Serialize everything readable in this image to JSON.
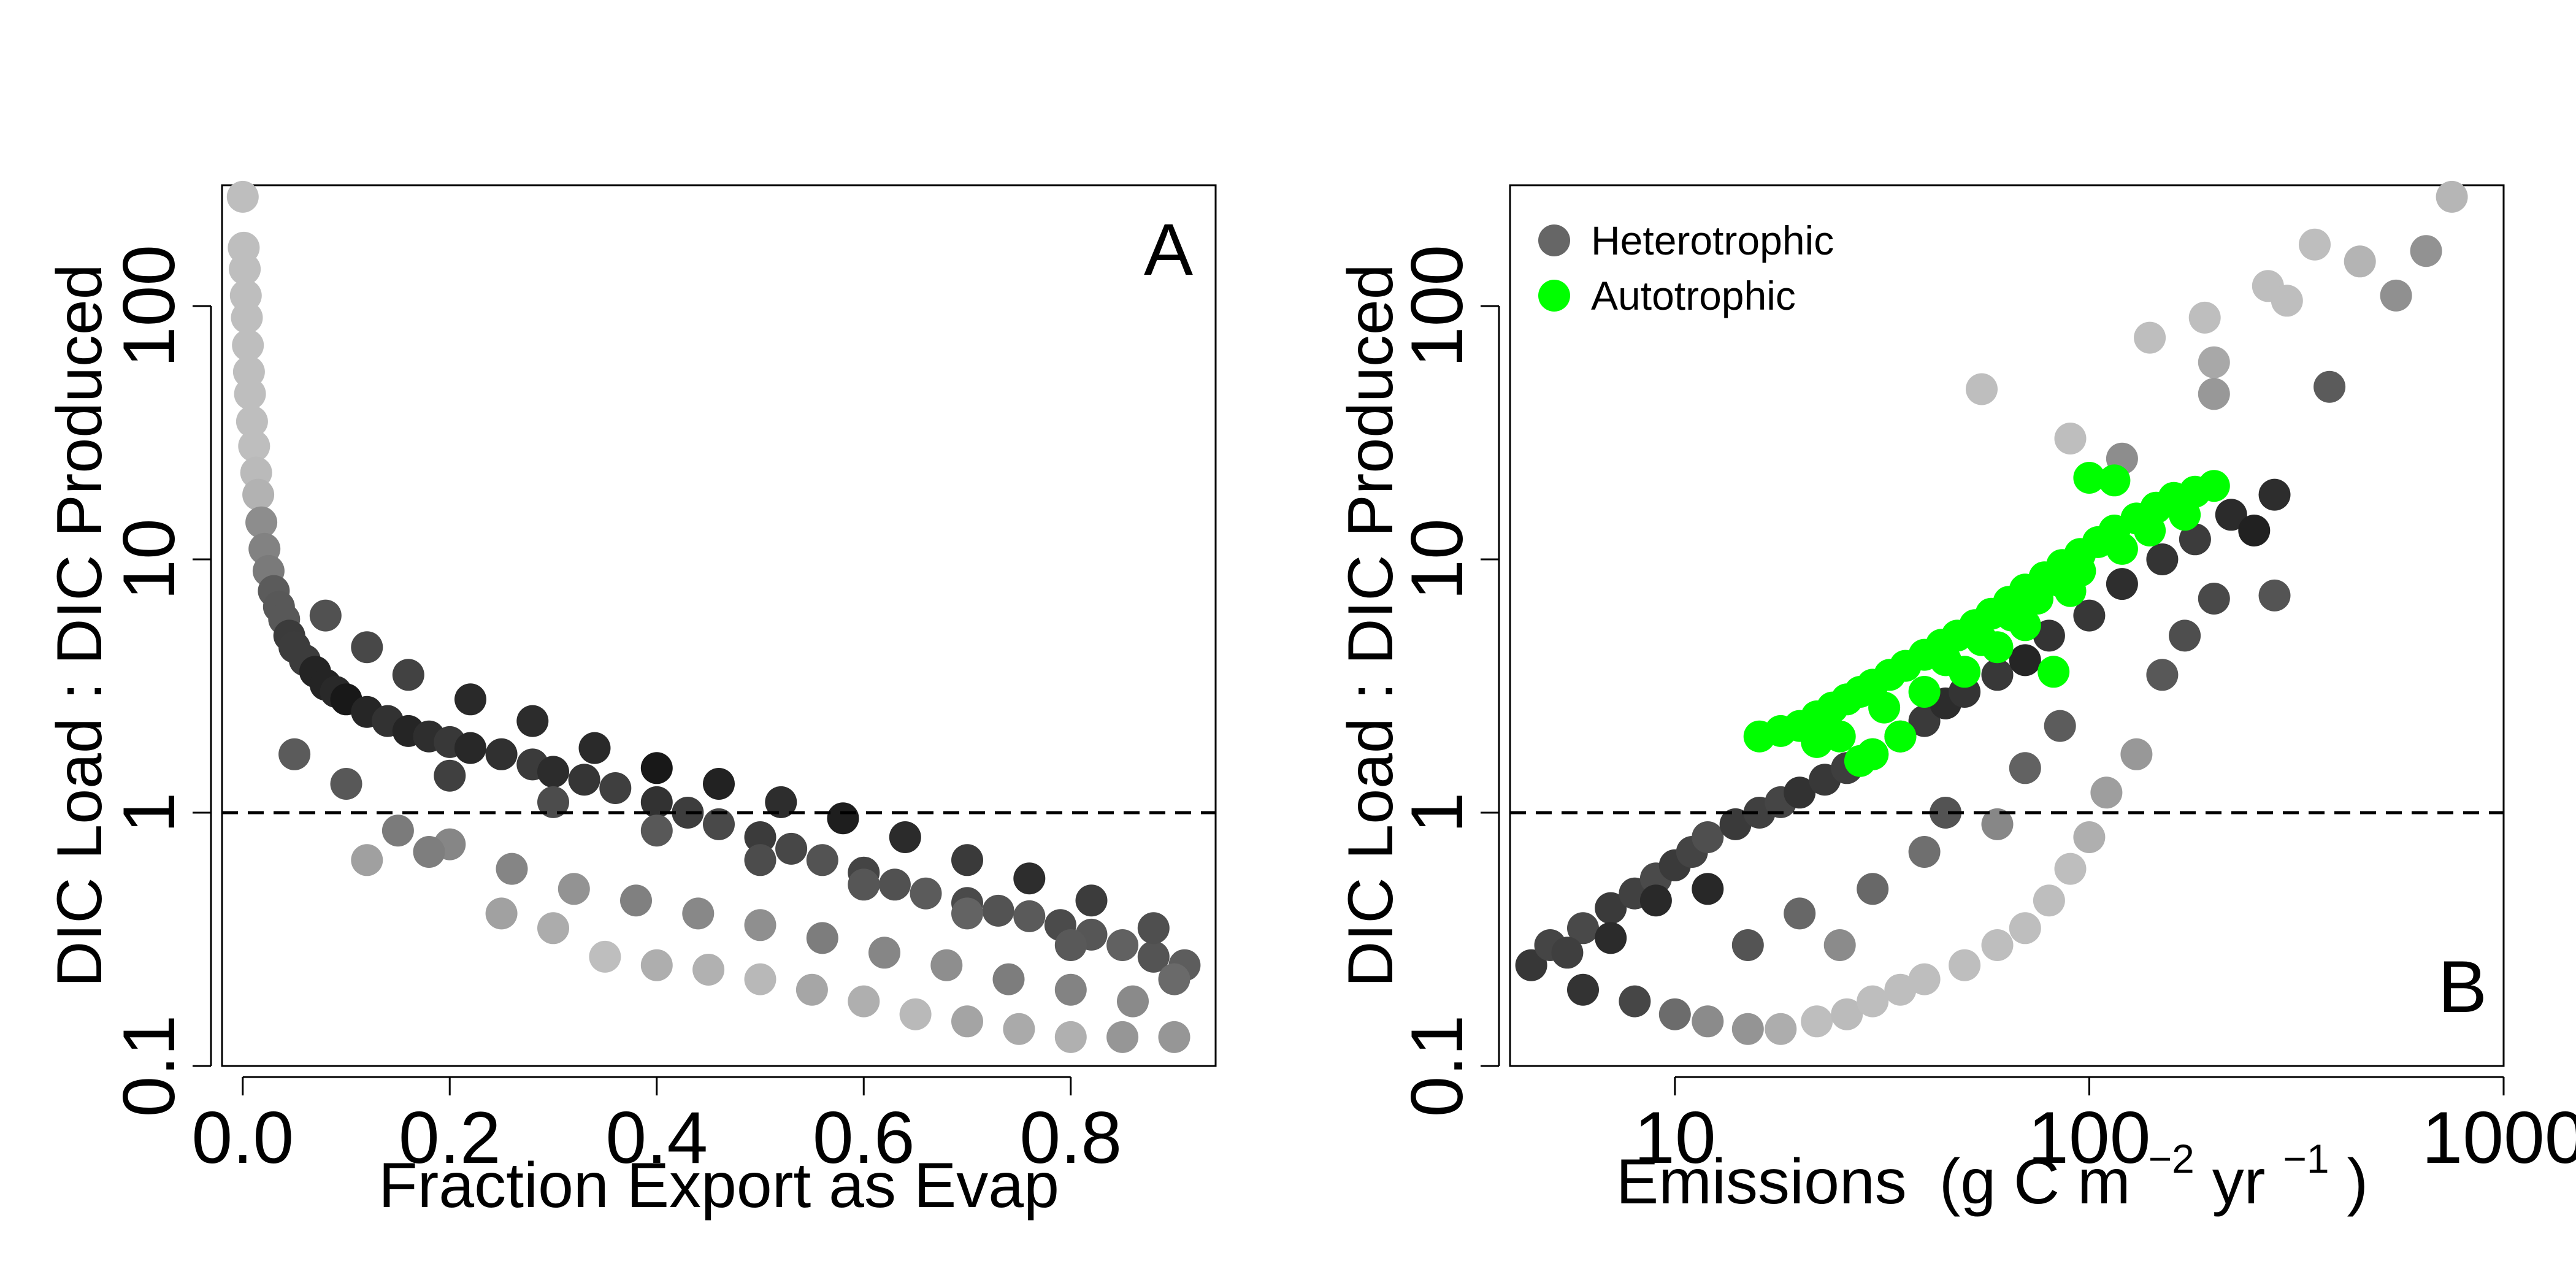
{
  "chart_data": [
    {
      "type": "scatter",
      "panel_label": "A",
      "xlabel": "Fraction Export as Evap",
      "ylabel": "DIC Load : DIC Produced",
      "xlim": [
        -0.02,
        0.94
      ],
      "ylim": [
        0.1,
        300
      ],
      "y_scale": "log",
      "x_ticks": [
        "0.0",
        "0.2",
        "0.4",
        "0.6",
        "0.8"
      ],
      "x_tick_values": [
        0,
        0.2,
        0.4,
        0.6,
        0.8
      ],
      "y_ticks": [
        "0.1",
        "1",
        "10",
        "100"
      ],
      "y_tick_values": [
        0.1,
        1,
        10,
        100
      ],
      "reference_line": {
        "y": 1,
        "style": "dashed"
      },
      "point_color_scale": [
        "#111111",
        "#bdbdbd"
      ],
      "series": [
        {
          "points": [
            [
              0.0,
              270
            ],
            [
              0.001,
              170
            ],
            [
              0.002,
              140
            ],
            [
              0.003,
              110
            ],
            [
              0.004,
              90
            ],
            [
              0.005,
              70
            ],
            [
              0.006,
              55
            ],
            [
              0.007,
              45
            ],
            [
              0.009,
              35
            ],
            [
              0.011,
              28
            ],
            [
              0.013,
              22
            ],
            [
              0.015,
              18
            ],
            [
              0.018,
              14
            ],
            [
              0.021,
              11
            ],
            [
              0.025,
              9
            ],
            [
              0.03,
              7.5
            ],
            [
              0.035,
              6.5
            ],
            [
              0.04,
              5.8
            ],
            [
              0.045,
              5.0
            ],
            [
              0.05,
              4.5
            ],
            [
              0.06,
              4.0
            ],
            [
              0.07,
              3.6
            ],
            [
              0.08,
              3.2
            ],
            [
              0.09,
              3.0
            ],
            [
              0.1,
              2.8
            ],
            [
              0.12,
              2.5
            ],
            [
              0.14,
              2.3
            ],
            [
              0.16,
              2.1
            ],
            [
              0.18,
              2.0
            ],
            [
              0.2,
              1.9
            ],
            [
              0.22,
              1.8
            ],
            [
              0.25,
              1.7
            ],
            [
              0.28,
              1.55
            ],
            [
              0.3,
              1.45
            ],
            [
              0.33,
              1.35
            ],
            [
              0.36,
              1.25
            ],
            [
              0.4,
              1.1
            ],
            [
              0.43,
              1.0
            ],
            [
              0.46,
              0.9
            ],
            [
              0.5,
              0.8
            ],
            [
              0.53,
              0.72
            ],
            [
              0.56,
              0.65
            ],
            [
              0.6,
              0.58
            ],
            [
              0.63,
              0.52
            ],
            [
              0.66,
              0.48
            ],
            [
              0.7,
              0.44
            ],
            [
              0.73,
              0.41
            ],
            [
              0.76,
              0.39
            ],
            [
              0.79,
              0.36
            ],
            [
              0.82,
              0.33
            ],
            [
              0.85,
              0.3
            ],
            [
              0.88,
              0.27
            ],
            [
              0.91,
              0.25
            ],
            [
              0.05,
              1.7
            ],
            [
              0.1,
              1.3
            ],
            [
              0.15,
              0.85
            ],
            [
              0.2,
              0.75
            ],
            [
              0.25,
              0.4
            ],
            [
              0.3,
              0.35
            ],
            [
              0.35,
              0.27
            ],
            [
              0.4,
              0.25
            ],
            [
              0.45,
              0.24
            ],
            [
              0.5,
              0.22
            ],
            [
              0.55,
              0.2
            ],
            [
              0.6,
              0.18
            ],
            [
              0.65,
              0.16
            ],
            [
              0.7,
              0.15
            ],
            [
              0.75,
              0.14
            ],
            [
              0.8,
              0.13
            ],
            [
              0.85,
              0.13
            ],
            [
              0.9,
              0.13
            ],
            [
              0.12,
              0.65
            ],
            [
              0.18,
              0.7
            ],
            [
              0.26,
              0.6
            ],
            [
              0.32,
              0.5
            ],
            [
              0.38,
              0.45
            ],
            [
              0.44,
              0.4
            ],
            [
              0.5,
              0.36
            ],
            [
              0.56,
              0.32
            ],
            [
              0.62,
              0.28
            ],
            [
              0.68,
              0.25
            ],
            [
              0.74,
              0.22
            ],
            [
              0.8,
              0.2
            ],
            [
              0.86,
              0.18
            ],
            [
              0.08,
              6.0
            ],
            [
              0.12,
              4.5
            ],
            [
              0.16,
              3.5
            ],
            [
              0.22,
              2.8
            ],
            [
              0.28,
              2.3
            ],
            [
              0.34,
              1.8
            ],
            [
              0.4,
              1.5
            ],
            [
              0.46,
              1.3
            ],
            [
              0.52,
              1.1
            ],
            [
              0.58,
              0.95
            ],
            [
              0.64,
              0.8
            ],
            [
              0.7,
              0.65
            ],
            [
              0.76,
              0.55
            ],
            [
              0.82,
              0.45
            ],
            [
              0.88,
              0.35
            ],
            [
              0.2,
              1.4
            ],
            [
              0.3,
              1.1
            ],
            [
              0.4,
              0.85
            ],
            [
              0.5,
              0.65
            ],
            [
              0.6,
              0.52
            ],
            [
              0.7,
              0.4
            ],
            [
              0.8,
              0.3
            ],
            [
              0.9,
              0.22
            ]
          ]
        }
      ]
    },
    {
      "type": "scatter",
      "panel_label": "B",
      "xlabel": "Emissions",
      "xlabel_units": [
        "(g C m",
        "−2",
        " yr",
        "−1",
        ")"
      ],
      "ylabel": "DIC Load : DIC Produced",
      "xlim": [
        4,
        1000
      ],
      "ylim": [
        0.1,
        300
      ],
      "x_scale": "log",
      "y_scale": "log",
      "x_ticks": [
        "10",
        "100",
        "1000"
      ],
      "x_tick_values": [
        10,
        100,
        1000
      ],
      "y_ticks": [
        "0.1",
        "1",
        "10",
        "100"
      ],
      "y_tick_values": [
        0.1,
        1,
        10,
        100
      ],
      "reference_line": {
        "y": 1,
        "style": "dashed"
      },
      "legend": {
        "position": "top-left",
        "entries": [
          {
            "label": "Heterotrophic",
            "color": "#666666"
          },
          {
            "label": "Autotrophic",
            "color": "#00ff00"
          }
        ]
      },
      "series": [
        {
          "name": "Heterotrophic",
          "color": "#666666",
          "points": [
            [
              4.5,
              0.25
            ],
            [
              5,
              0.3
            ],
            [
              6,
              0.35
            ],
            [
              7,
              0.42
            ],
            [
              8,
              0.48
            ],
            [
              9,
              0.55
            ],
            [
              10,
              0.62
            ],
            [
              11,
              0.7
            ],
            [
              12,
              0.8
            ],
            [
              14,
              0.9
            ],
            [
              16,
              1.0
            ],
            [
              18,
              1.1
            ],
            [
              20,
              1.2
            ],
            [
              23,
              1.35
            ],
            [
              26,
              1.5
            ],
            [
              30,
              1.7
            ],
            [
              35,
              2.0
            ],
            [
              40,
              2.3
            ],
            [
              45,
              2.7
            ],
            [
              50,
              3.0
            ],
            [
              60,
              3.5
            ],
            [
              70,
              4.0
            ],
            [
              80,
              5.0
            ],
            [
              100,
              6.0
            ],
            [
              120,
              8.0
            ],
            [
              150,
              10
            ],
            [
              180,
              12
            ],
            [
              220,
              15
            ],
            [
              280,
              18
            ],
            [
              6,
              0.2
            ],
            [
              8,
              0.18
            ],
            [
              10,
              0.16
            ],
            [
              12,
              0.15
            ],
            [
              15,
              0.14
            ],
            [
              18,
              0.14
            ],
            [
              22,
              0.15
            ],
            [
              26,
              0.16
            ],
            [
              30,
              0.18
            ],
            [
              35,
              0.2
            ],
            [
              40,
              0.22
            ],
            [
              50,
              0.25
            ],
            [
              60,
              0.3
            ],
            [
              70,
              0.35
            ],
            [
              80,
              0.45
            ],
            [
              90,
              0.6
            ],
            [
              100,
              0.8
            ],
            [
              110,
              1.2
            ],
            [
              130,
              1.7
            ],
            [
              150,
              3.5
            ],
            [
              170,
              5.0
            ],
            [
              200,
              7.0
            ],
            [
              280,
              7.2
            ],
            [
              250,
              13
            ],
            [
              90,
              30
            ],
            [
              120,
              25
            ],
            [
              140,
              75
            ],
            [
              190,
              90
            ],
            [
              200,
              60
            ],
            [
              200,
              45
            ],
            [
              270,
              120
            ],
            [
              350,
              175
            ],
            [
              450,
              150
            ],
            [
              550,
              110
            ],
            [
              650,
              165
            ],
            [
              750,
              270
            ],
            [
              300,
              105
            ],
            [
              380,
              48
            ],
            [
              55,
              47
            ],
            [
              20,
              0.4
            ],
            [
              30,
              0.5
            ],
            [
              40,
              0.7
            ],
            [
              60,
              0.9
            ],
            [
              15,
              0.3
            ],
            [
              25,
              0.3
            ],
            [
              12,
              0.5
            ],
            [
              9,
              0.45
            ],
            [
              7,
              0.32
            ],
            [
              5.5,
              0.28
            ],
            [
              45,
              1.0
            ],
            [
              70,
              1.5
            ],
            [
              85,
              2.2
            ]
          ]
        },
        {
          "name": "Autotrophic",
          "color": "#00ff00",
          "points": [
            [
              16,
              2.0
            ],
            [
              18,
              2.1
            ],
            [
              20,
              2.2
            ],
            [
              22,
              2.4
            ],
            [
              24,
              2.6
            ],
            [
              26,
              2.8
            ],
            [
              28,
              3.0
            ],
            [
              30,
              3.2
            ],
            [
              33,
              3.5
            ],
            [
              36,
              3.8
            ],
            [
              40,
              4.2
            ],
            [
              44,
              4.6
            ],
            [
              48,
              5.0
            ],
            [
              53,
              5.5
            ],
            [
              58,
              6.1
            ],
            [
              64,
              6.8
            ],
            [
              70,
              7.6
            ],
            [
              78,
              8.5
            ],
            [
              86,
              9.5
            ],
            [
              95,
              10.5
            ],
            [
              105,
              11.7
            ],
            [
              115,
              13
            ],
            [
              130,
              14.5
            ],
            [
              145,
              16
            ],
            [
              160,
              17.5
            ],
            [
              180,
              18.5
            ],
            [
              200,
              19.5
            ],
            [
              100,
              21
            ],
            [
              115,
              20.5
            ],
            [
              25,
              2.0
            ],
            [
              30,
              1.7
            ],
            [
              35,
              2.0
            ],
            [
              28,
              1.6
            ],
            [
              40,
              3.0
            ],
            [
              50,
              3.6
            ],
            [
              60,
              4.5
            ],
            [
              70,
              5.5
            ],
            [
              82,
              3.6
            ],
            [
              90,
              7.5
            ],
            [
              120,
              11
            ],
            [
              22,
              1.9
            ],
            [
              32,
              2.6
            ],
            [
              45,
              4.0
            ],
            [
              55,
              4.8
            ],
            [
              65,
              6.0
            ],
            [
              75,
              7.0
            ],
            [
              85,
              8.2
            ],
            [
              95,
              9.0
            ],
            [
              140,
              13
            ],
            [
              170,
              15
            ]
          ]
        }
      ]
    }
  ]
}
